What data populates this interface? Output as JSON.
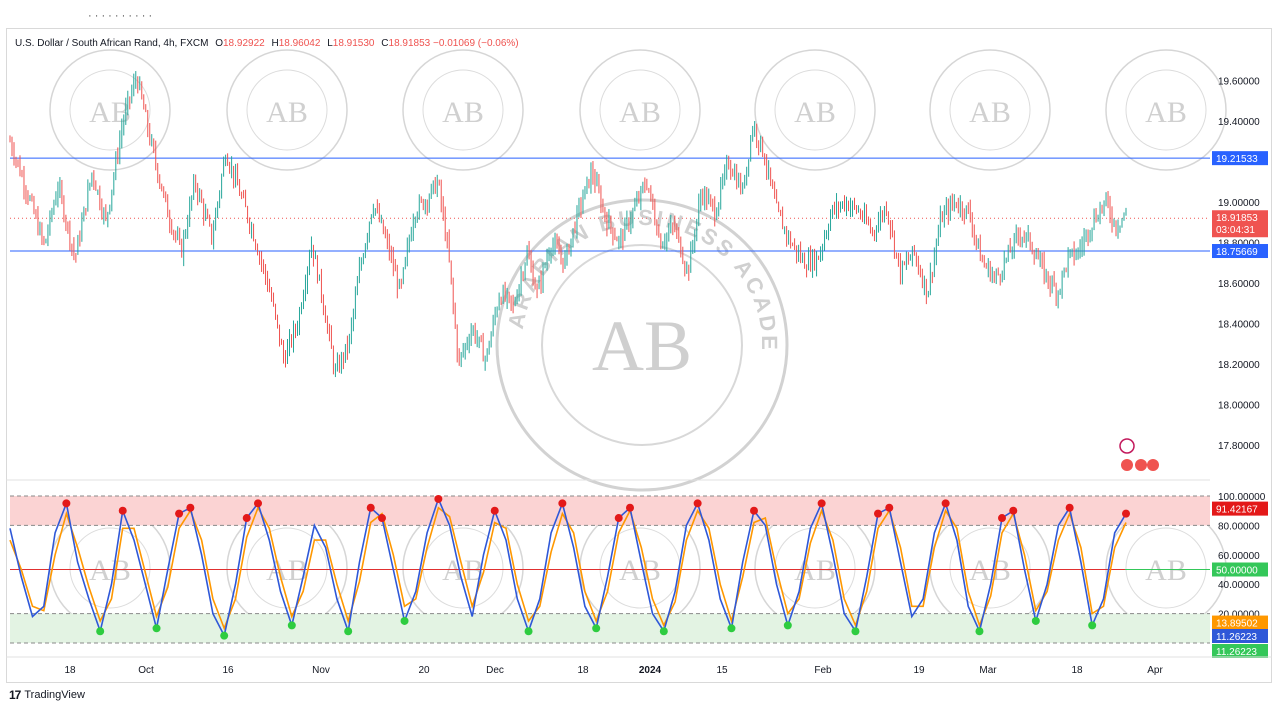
{
  "header": {
    "symbol": "U.S. Dollar / South African Rand, 4h, FXCM",
    "o_label": "O",
    "o": "18.92922",
    "h_label": "H",
    "h": "18.96042",
    "l_label": "L",
    "l": "18.91530",
    "c_label": "C",
    "c": "18.91853",
    "change": "−0.01069 (−0.06%)"
  },
  "footer": {
    "brand": "TradingView",
    "logo": "17"
  },
  "watermark": {
    "text": "ARABIAN BUSINESS ACADEMY",
    "initials": "AB"
  },
  "colors": {
    "up": "#26a69a",
    "down": "#ef5350",
    "level_line": "#2962ff",
    "stoch_k": "#2f58d8",
    "stoch_d": "#ff9800",
    "overbought_zone": "#fbd3d3",
    "oversold_zone": "#e3f3e3",
    "mid_line_red": "#e03030",
    "mid_line_green": "#34c759"
  },
  "chart_data": [
    {
      "type": "candlestick",
      "title": "U.S. Dollar / South African Rand, 4h, FXCM",
      "ylim": [
        17.7,
        19.7
      ],
      "y_ticks": [
        "19.60000",
        "19.40000",
        "19.00000",
        "18.80000",
        "18.60000",
        "18.40000",
        "18.20000",
        "18.00000",
        "17.80000"
      ],
      "x_tick_labels": [
        "18",
        "Oct",
        "16",
        "Nov",
        "20",
        "Dec",
        "18",
        "2024",
        "15",
        "Feb",
        "19",
        "Mar",
        "18",
        "Apr"
      ],
      "levels": [
        {
          "value": 19.21533,
          "label": "19.21533"
        },
        {
          "value": 18.75669,
          "label": "18.75669"
        }
      ],
      "last_price": {
        "value": 18.91853,
        "label": "18.91853",
        "countdown": "03:04:31"
      },
      "path_points": [
        [
          0,
          19.3
        ],
        [
          10,
          19.05
        ],
        [
          20,
          18.78
        ],
        [
          28,
          19.08
        ],
        [
          38,
          18.72
        ],
        [
          48,
          19.15
        ],
        [
          56,
          18.9
        ],
        [
          66,
          19.4
        ],
        [
          74,
          19.62
        ],
        [
          82,
          19.3
        ],
        [
          92,
          18.95
        ],
        [
          100,
          18.75
        ],
        [
          108,
          19.1
        ],
        [
          118,
          18.82
        ],
        [
          126,
          19.25
        ],
        [
          134,
          19.05
        ],
        [
          142,
          18.85
        ],
        [
          152,
          18.55
        ],
        [
          160,
          18.22
        ],
        [
          168,
          18.4
        ],
        [
          176,
          18.8
        ],
        [
          182,
          18.55
        ],
        [
          190,
          18.15
        ],
        [
          198,
          18.3
        ],
        [
          204,
          18.65
        ],
        [
          212,
          19.0
        ],
        [
          220,
          18.8
        ],
        [
          228,
          18.55
        ],
        [
          236,
          18.95
        ],
        [
          244,
          19.02
        ],
        [
          250,
          19.1
        ],
        [
          256,
          18.75
        ],
        [
          262,
          18.2
        ],
        [
          270,
          18.38
        ],
        [
          278,
          18.22
        ],
        [
          286,
          18.55
        ],
        [
          294,
          18.48
        ],
        [
          302,
          18.75
        ],
        [
          308,
          18.55
        ],
        [
          316,
          18.8
        ],
        [
          324,
          18.7
        ],
        [
          332,
          18.95
        ],
        [
          340,
          19.15
        ],
        [
          348,
          18.92
        ],
        [
          356,
          18.8
        ],
        [
          364,
          18.95
        ],
        [
          372,
          19.1
        ],
        [
          380,
          18.8
        ],
        [
          388,
          18.88
        ],
        [
          396,
          18.65
        ],
        [
          404,
          19.05
        ],
        [
          412,
          18.95
        ],
        [
          420,
          19.2
        ],
        [
          428,
          19.05
        ],
        [
          434,
          19.38
        ],
        [
          440,
          19.25
        ],
        [
          448,
          18.95
        ],
        [
          456,
          18.8
        ],
        [
          464,
          18.7
        ],
        [
          472,
          18.72
        ],
        [
          480,
          18.95
        ],
        [
          488,
          19.0
        ],
        [
          496,
          18.95
        ],
        [
          504,
          18.85
        ],
        [
          512,
          18.98
        ],
        [
          520,
          18.65
        ],
        [
          528,
          18.75
        ],
        [
          536,
          18.55
        ],
        [
          544,
          18.92
        ],
        [
          552,
          19.0
        ],
        [
          560,
          18.95
        ],
        [
          568,
          18.7
        ],
        [
          576,
          18.62
        ],
        [
          584,
          18.75
        ],
        [
          590,
          18.85
        ],
        [
          596,
          18.8
        ],
        [
          604,
          18.65
        ],
        [
          612,
          18.55
        ],
        [
          618,
          18.72
        ],
        [
          624,
          18.75
        ],
        [
          632,
          18.9
        ],
        [
          640,
          19.0
        ],
        [
          646,
          18.88
        ],
        [
          652,
          18.95
        ]
      ],
      "up_color": "#26a69a",
      "down_color": "#ef5350"
    },
    {
      "type": "line",
      "title": "Stochastic",
      "ylim": [
        0,
        100
      ],
      "y_ticks": [
        "100.00000",
        "80.00000",
        "60.00000",
        "40.00000",
        "20.00000"
      ],
      "bands": {
        "upper": 100,
        "overbought": 80,
        "oversold": 20,
        "lower": 0
      },
      "mid_lines": [
        50
      ],
      "series": [
        {
          "values": [
            78,
            45,
            18,
            25,
            75,
            95,
            55,
            30,
            8,
            40,
            90,
            70,
            40,
            10,
            50,
            88,
            92,
            60,
            20,
            5,
            40,
            85,
            95,
            70,
            35,
            12,
            45,
            80,
            65,
            30,
            8,
            55,
            92,
            85,
            50,
            15,
            35,
            75,
            98,
            80,
            45,
            18,
            60,
            90,
            70,
            30,
            8,
            30,
            75,
            95,
            65,
            25,
            10,
            45,
            85,
            92,
            55,
            20,
            8,
            35,
            80,
            95,
            70,
            30,
            10,
            55,
            90,
            80,
            40,
            12,
            35,
            78,
            95,
            60,
            20,
            8,
            45,
            88,
            92,
            55,
            18,
            30,
            75,
            95,
            70,
            25,
            8,
            40,
            85,
            90,
            50,
            15,
            40,
            80,
            92,
            55,
            12,
            30,
            75,
            88
          ]
        },
        {
          "values": [
            70,
            50,
            25,
            22,
            60,
            88,
            65,
            38,
            15,
            30,
            78,
            78,
            48,
            18,
            38,
            78,
            90,
            70,
            30,
            10,
            30,
            72,
            92,
            78,
            45,
            18,
            35,
            70,
            70,
            40,
            15,
            42,
            82,
            88,
            60,
            25,
            30,
            65,
            92,
            86,
            55,
            25,
            48,
            82,
            78,
            40,
            15,
            25,
            62,
            88,
            75,
            35,
            15,
            35,
            75,
            90,
            65,
            30,
            12,
            28,
            70,
            90,
            78,
            40,
            15,
            45,
            82,
            85,
            50,
            20,
            30,
            68,
            90,
            70,
            30,
            12,
            35,
            78,
            90,
            65,
            25,
            25,
            65,
            90,
            78,
            35,
            12,
            32,
            75,
            88,
            60,
            22,
            35,
            70,
            88,
            65,
            20,
            25,
            65,
            82
          ]
        }
      ],
      "last_values": [
        "91.42167",
        "50.00000",
        "13.89502",
        "11.26223",
        "11.26223"
      ]
    }
  ]
}
